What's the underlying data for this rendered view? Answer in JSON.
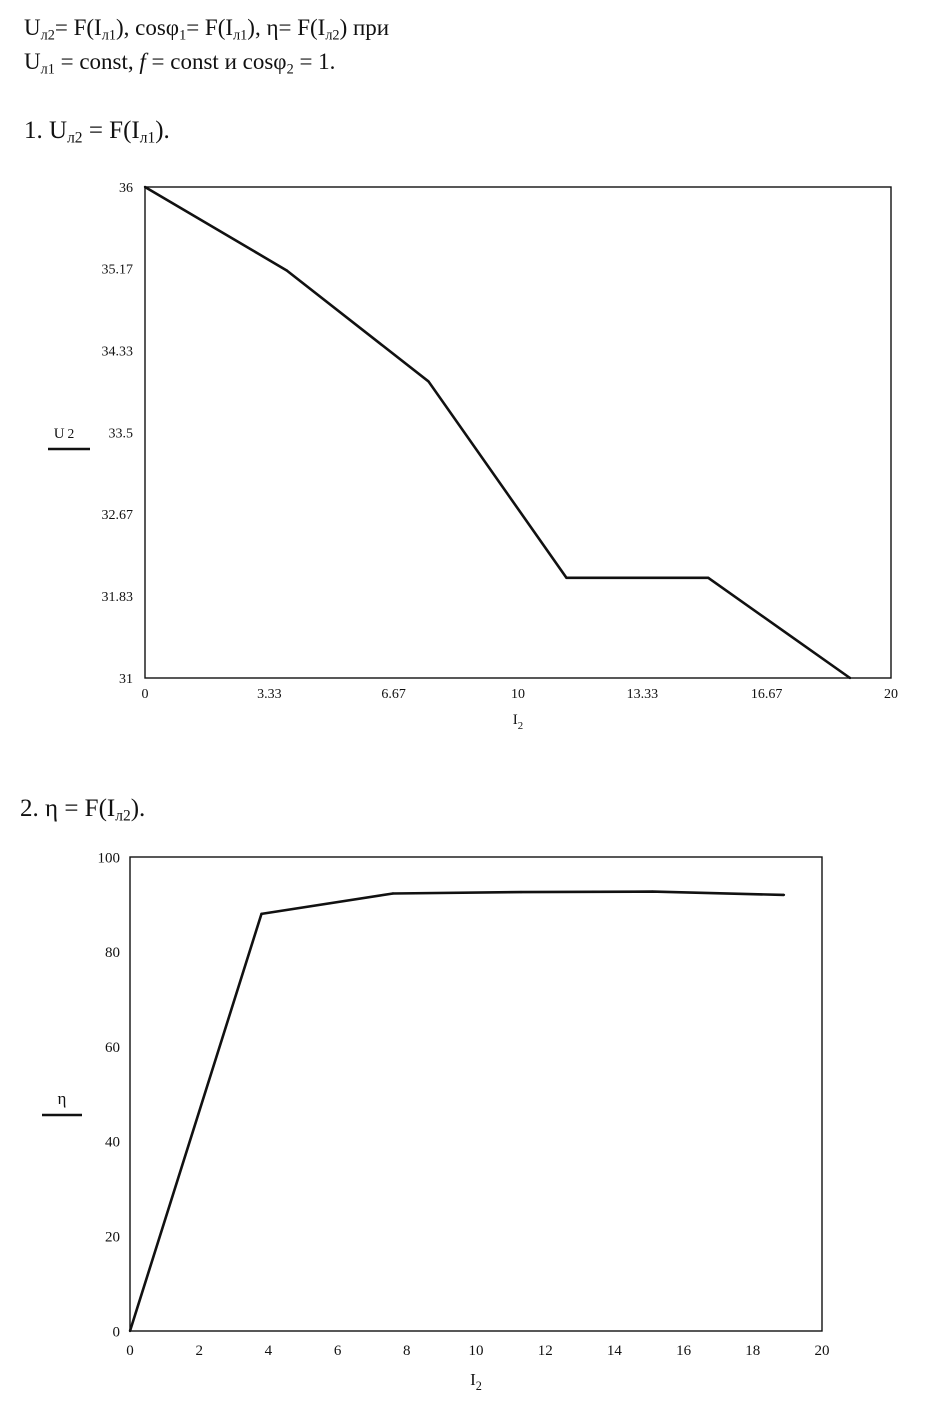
{
  "header": {
    "line1": [
      {
        "t": "U"
      },
      {
        "s": "л2"
      },
      {
        "t": "= F(I"
      },
      {
        "s": "л1"
      },
      {
        "t": "), cosφ"
      },
      {
        "s": "1"
      },
      {
        "t": "= F(I"
      },
      {
        "s": "л1"
      },
      {
        "t": "), η= F(I"
      },
      {
        "s": "л2"
      },
      {
        "t": ") при"
      }
    ],
    "line2": [
      {
        "t": "U"
      },
      {
        "s": "л1"
      },
      {
        "t": " = const, "
      },
      {
        "i": "f"
      },
      {
        "t": " = const и cosφ"
      },
      {
        "s": "2"
      },
      {
        "t": " = 1."
      }
    ]
  },
  "sections": {
    "s1": [
      {
        "t": "1. U"
      },
      {
        "s": "л2"
      },
      {
        "t": " = F(I"
      },
      {
        "s": "л1"
      },
      {
        "t": ")."
      }
    ],
    "s2": [
      {
        "t": "2. η = F(I"
      },
      {
        "s": "л2"
      },
      {
        "t": ")."
      }
    ]
  },
  "chart_data": [
    {
      "type": "line",
      "title": "",
      "xlabel": "I",
      "xlabel_sub": "2",
      "ylabel": "U",
      "ylabel_sub": "2",
      "xlim": [
        0,
        20
      ],
      "ylim": [
        31,
        36
      ],
      "xticks": [
        "0",
        "3.33",
        "6.67",
        "10",
        "13.33",
        "16.67",
        "20"
      ],
      "yticks": [
        "31",
        "31.83",
        "32.67",
        "33.5",
        "34.33",
        "35.17",
        "36"
      ],
      "x": [
        0,
        3.8,
        7.6,
        11.3,
        15.1,
        18.9
      ],
      "y": [
        36,
        35.15,
        34.02,
        32.02,
        32.02,
        31.0
      ],
      "grid": false,
      "legend": "none",
      "line_color": "#111111"
    },
    {
      "type": "line",
      "title": "",
      "xlabel": "I",
      "xlabel_sub": "2",
      "ylabel": "η",
      "ylabel_sub": "",
      "xlim": [
        0,
        20
      ],
      "ylim": [
        0,
        100
      ],
      "xticks": [
        "0",
        "2",
        "4",
        "6",
        "8",
        "10",
        "12",
        "14",
        "16",
        "18",
        "20"
      ],
      "yticks": [
        "0",
        "20",
        "40",
        "60",
        "80",
        "100"
      ],
      "x": [
        0,
        3.8,
        7.6,
        11.3,
        15.1,
        18.9
      ],
      "y": [
        0,
        88.0,
        92.3,
        92.6,
        92.7,
        92.0
      ],
      "grid": false,
      "legend": "none",
      "line_color": "#111111"
    }
  ]
}
